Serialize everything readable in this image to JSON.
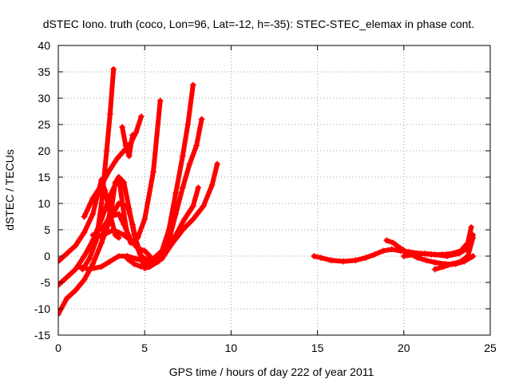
{
  "chart_data": {
    "type": "scatter",
    "title": "dSTEC Iono. truth (coco, Lon=96, Lat=-12, h=-35): STEC-STEC_elemax in phase cont.",
    "xlabel": "GPS time / hours of day 222 of year 2011",
    "ylabel": "dSTEC  / TECUs",
    "xlim": [
      0,
      25
    ],
    "ylim": [
      -15,
      40
    ],
    "xticks": [
      0,
      5,
      10,
      15,
      20,
      25
    ],
    "yticks": [
      -15,
      -10,
      -5,
      0,
      5,
      10,
      15,
      20,
      25,
      30,
      35,
      40
    ],
    "grid": true,
    "marker": "plus",
    "color": "#ff0000",
    "series": [
      {
        "points": [
          [
            0.0,
            -11.0
          ],
          [
            0.5,
            -8.0
          ],
          [
            1.0,
            -6.5
          ],
          [
            1.5,
            -4.5
          ],
          [
            2.0,
            -1.5
          ],
          [
            2.5,
            2.5
          ],
          [
            3.0,
            7.0
          ],
          [
            3.5,
            10.0
          ],
          [
            4.0,
            9.5
          ],
          [
            4.3,
            6.0
          ],
          [
            4.6,
            1.5
          ],
          [
            5.0,
            -2.3
          ],
          [
            5.3,
            -2.0
          ],
          [
            5.8,
            -1.0
          ],
          [
            6.2,
            1.0
          ],
          [
            6.8,
            4.0
          ],
          [
            7.3,
            7.0
          ],
          [
            7.8,
            9.5
          ],
          [
            8.1,
            13.0
          ]
        ]
      },
      {
        "points": [
          [
            0.0,
            -5.5
          ],
          [
            0.5,
            -4.0
          ],
          [
            1.0,
            -2.5
          ],
          [
            1.5,
            0.0
          ],
          [
            2.0,
            3.0
          ],
          [
            2.5,
            7.0
          ],
          [
            3.0,
            11.5
          ],
          [
            3.5,
            15.0
          ],
          [
            3.8,
            14.0
          ],
          [
            4.1,
            9.0
          ],
          [
            4.4,
            4.0
          ],
          [
            4.8,
            0.0
          ],
          [
            5.3,
            -1.0
          ],
          [
            6.0,
            -0.5
          ],
          [
            6.5,
            2.0
          ],
          [
            7.2,
            5.0
          ],
          [
            7.8,
            7.0
          ],
          [
            8.4,
            9.5
          ],
          [
            8.9,
            13.5
          ],
          [
            9.2,
            17.5
          ]
        ]
      },
      {
        "points": [
          [
            0.0,
            -1.0
          ],
          [
            0.5,
            0.5
          ],
          [
            1.0,
            2.0
          ],
          [
            1.5,
            4.5
          ],
          [
            2.0,
            8.0
          ],
          [
            2.3,
            12.0
          ],
          [
            2.5,
            14.5
          ],
          [
            2.7,
            12.5
          ],
          [
            3.0,
            8.0
          ],
          [
            3.3,
            4.0
          ],
          [
            3.5,
            3.5
          ]
        ]
      },
      {
        "points": [
          [
            1.2,
            -2.0
          ],
          [
            1.8,
            -2.5
          ],
          [
            2.5,
            -2.0
          ],
          [
            3.0,
            -1.0
          ],
          [
            3.5,
            0.0
          ],
          [
            4.0,
            0.0
          ],
          [
            4.5,
            -0.5
          ],
          [
            5.0,
            -1.0
          ],
          [
            5.5,
            -0.5
          ],
          [
            6.0,
            1.0
          ],
          [
            6.4,
            5.0
          ],
          [
            6.8,
            12.0
          ],
          [
            7.2,
            19.0
          ],
          [
            7.5,
            25.0
          ],
          [
            7.8,
            32.5
          ]
        ]
      },
      {
        "points": [
          [
            1.5,
            7.5
          ],
          [
            2.0,
            11.0
          ],
          [
            2.5,
            13.5
          ],
          [
            3.0,
            16.5
          ],
          [
            3.4,
            18.5
          ],
          [
            3.8,
            20.0
          ],
          [
            4.2,
            21.5
          ],
          [
            4.5,
            23.5
          ],
          [
            4.8,
            26.5
          ]
        ]
      },
      {
        "points": [
          [
            1.4,
            -2.5
          ],
          [
            1.8,
            -0.5
          ],
          [
            2.2,
            3.0
          ],
          [
            2.5,
            10.0
          ],
          [
            2.8,
            20.0
          ],
          [
            3.0,
            27.0
          ],
          [
            3.2,
            35.5
          ]
        ]
      },
      {
        "points": [
          [
            2.5,
            3.5
          ],
          [
            2.8,
            6.0
          ],
          [
            3.1,
            9.5
          ],
          [
            3.3,
            14.0
          ],
          [
            3.5,
            15.0
          ],
          [
            3.8,
            8.0
          ],
          [
            4.0,
            4.0
          ],
          [
            4.2,
            2.5
          ],
          [
            4.6,
            3.5
          ],
          [
            5.0,
            7.0
          ],
          [
            5.5,
            16.0
          ],
          [
            5.9,
            29.5
          ]
        ]
      },
      {
        "points": [
          [
            2.5,
            5.0
          ],
          [
            3.0,
            7.5
          ],
          [
            3.5,
            8.0
          ],
          [
            3.8,
            6.0
          ],
          [
            4.2,
            3.0
          ],
          [
            4.6,
            1.5
          ],
          [
            5.0,
            1.0
          ],
          [
            5.3,
            0.0
          ]
        ]
      },
      {
        "points": [
          [
            2.0,
            4.0
          ],
          [
            2.6,
            4.0
          ],
          [
            3.2,
            5.0
          ],
          [
            3.8,
            4.0
          ],
          [
            4.2,
            3.0
          ]
        ]
      },
      {
        "points": [
          [
            3.7,
            24.5
          ],
          [
            3.9,
            21.0
          ],
          [
            4.1,
            19.0
          ],
          [
            4.3,
            23.0
          ]
        ]
      },
      {
        "points": [
          [
            4.0,
            -0.5
          ],
          [
            4.4,
            -1.5
          ],
          [
            4.8,
            -2.0
          ],
          [
            5.2,
            -1.5
          ],
          [
            5.6,
            -1.0
          ],
          [
            6.0,
            0.0
          ],
          [
            6.4,
            3.0
          ],
          [
            6.8,
            8.0
          ],
          [
            7.2,
            13.0
          ],
          [
            7.6,
            17.5
          ],
          [
            8.0,
            21.0
          ],
          [
            8.3,
            26.0
          ]
        ]
      },
      {
        "points": [
          [
            14.8,
            0.0
          ],
          [
            15.2,
            -0.3
          ],
          [
            15.8,
            -0.8
          ],
          [
            16.5,
            -1.0
          ],
          [
            17.2,
            -0.8
          ],
          [
            17.8,
            -0.3
          ],
          [
            18.3,
            0.3
          ],
          [
            18.8,
            1.0
          ],
          [
            19.3,
            1.3
          ],
          [
            19.8,
            1.0
          ],
          [
            20.3,
            0.8
          ],
          [
            21.0,
            0.5
          ],
          [
            21.6,
            0.3
          ],
          [
            22.2,
            0.3
          ],
          [
            22.8,
            0.5
          ],
          [
            23.3,
            1.0
          ],
          [
            23.7,
            2.5
          ],
          [
            23.9,
            5.5
          ]
        ]
      },
      {
        "points": [
          [
            19.0,
            3.0
          ],
          [
            19.4,
            2.5
          ],
          [
            19.8,
            1.5
          ],
          [
            20.3,
            0.5
          ],
          [
            20.8,
            -0.3
          ],
          [
            21.3,
            -0.8
          ],
          [
            21.8,
            -1.2
          ],
          [
            22.4,
            -1.5
          ],
          [
            23.0,
            -1.5
          ],
          [
            23.5,
            -1.0
          ],
          [
            24.0,
            0.0
          ]
        ]
      },
      {
        "points": [
          [
            20.0,
            0.0
          ],
          [
            20.6,
            0.3
          ],
          [
            21.2,
            0.5
          ],
          [
            21.8,
            0.3
          ],
          [
            22.5,
            0.0
          ],
          [
            23.2,
            0.5
          ],
          [
            23.7,
            1.5
          ],
          [
            24.0,
            4.0
          ]
        ]
      },
      {
        "points": [
          [
            21.8,
            -2.5
          ],
          [
            22.3,
            -2.0
          ],
          [
            22.8,
            -1.5
          ],
          [
            23.3,
            -1.0
          ],
          [
            23.7,
            0.0
          ],
          [
            24.0,
            3.5
          ]
        ]
      }
    ]
  }
}
